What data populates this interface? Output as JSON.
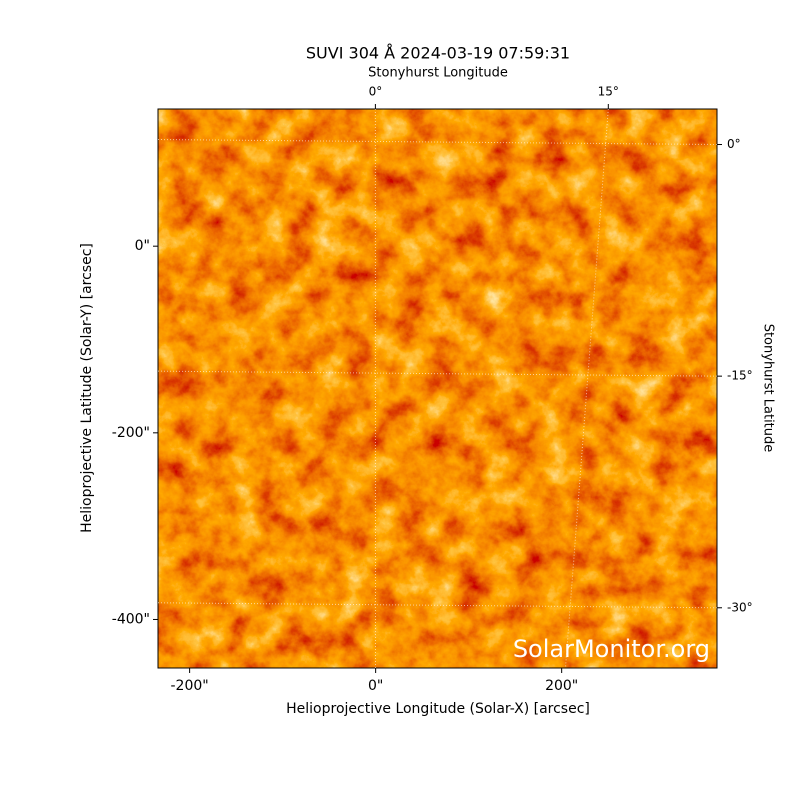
{
  "chart_data": {
    "type": "image",
    "title": "SUVI 304 Å 2024-03-19 07:59:31",
    "xlabel": "Helioprojective Longitude (Solar-X) [arcsec]",
    "ylabel": "Helioprojective Latitude (Solar-Y) [arcsec]",
    "x2label": "Stonyhurst Longitude",
    "y2label": "Stonyhurst Latitude",
    "xlim": [
      -234,
      367
    ],
    "ylim": [
      -452,
      147
    ],
    "xticks": [
      {
        "value": -200,
        "label": "-200\""
      },
      {
        "value": 0,
        "label": "0\""
      },
      {
        "value": 200,
        "label": "200\""
      }
    ],
    "yticks": [
      {
        "value": 0,
        "label": "0\""
      },
      {
        "value": -200,
        "label": "-200\""
      },
      {
        "value": -400,
        "label": "-400\""
      }
    ],
    "x2lim": [
      -14,
      22
    ],
    "x2ticks": [
      {
        "value": 0,
        "label": "0°"
      },
      {
        "value": 15,
        "label": "15°"
      }
    ],
    "y2lim": [
      2.3,
      -33.9
    ],
    "y2ticks": [
      {
        "value": 0,
        "label": "0°"
      },
      {
        "value": -15,
        "label": "-15°"
      },
      {
        "value": -30,
        "label": "-30°"
      }
    ],
    "grid": true,
    "watermark": "SolarMonitor.org"
  }
}
